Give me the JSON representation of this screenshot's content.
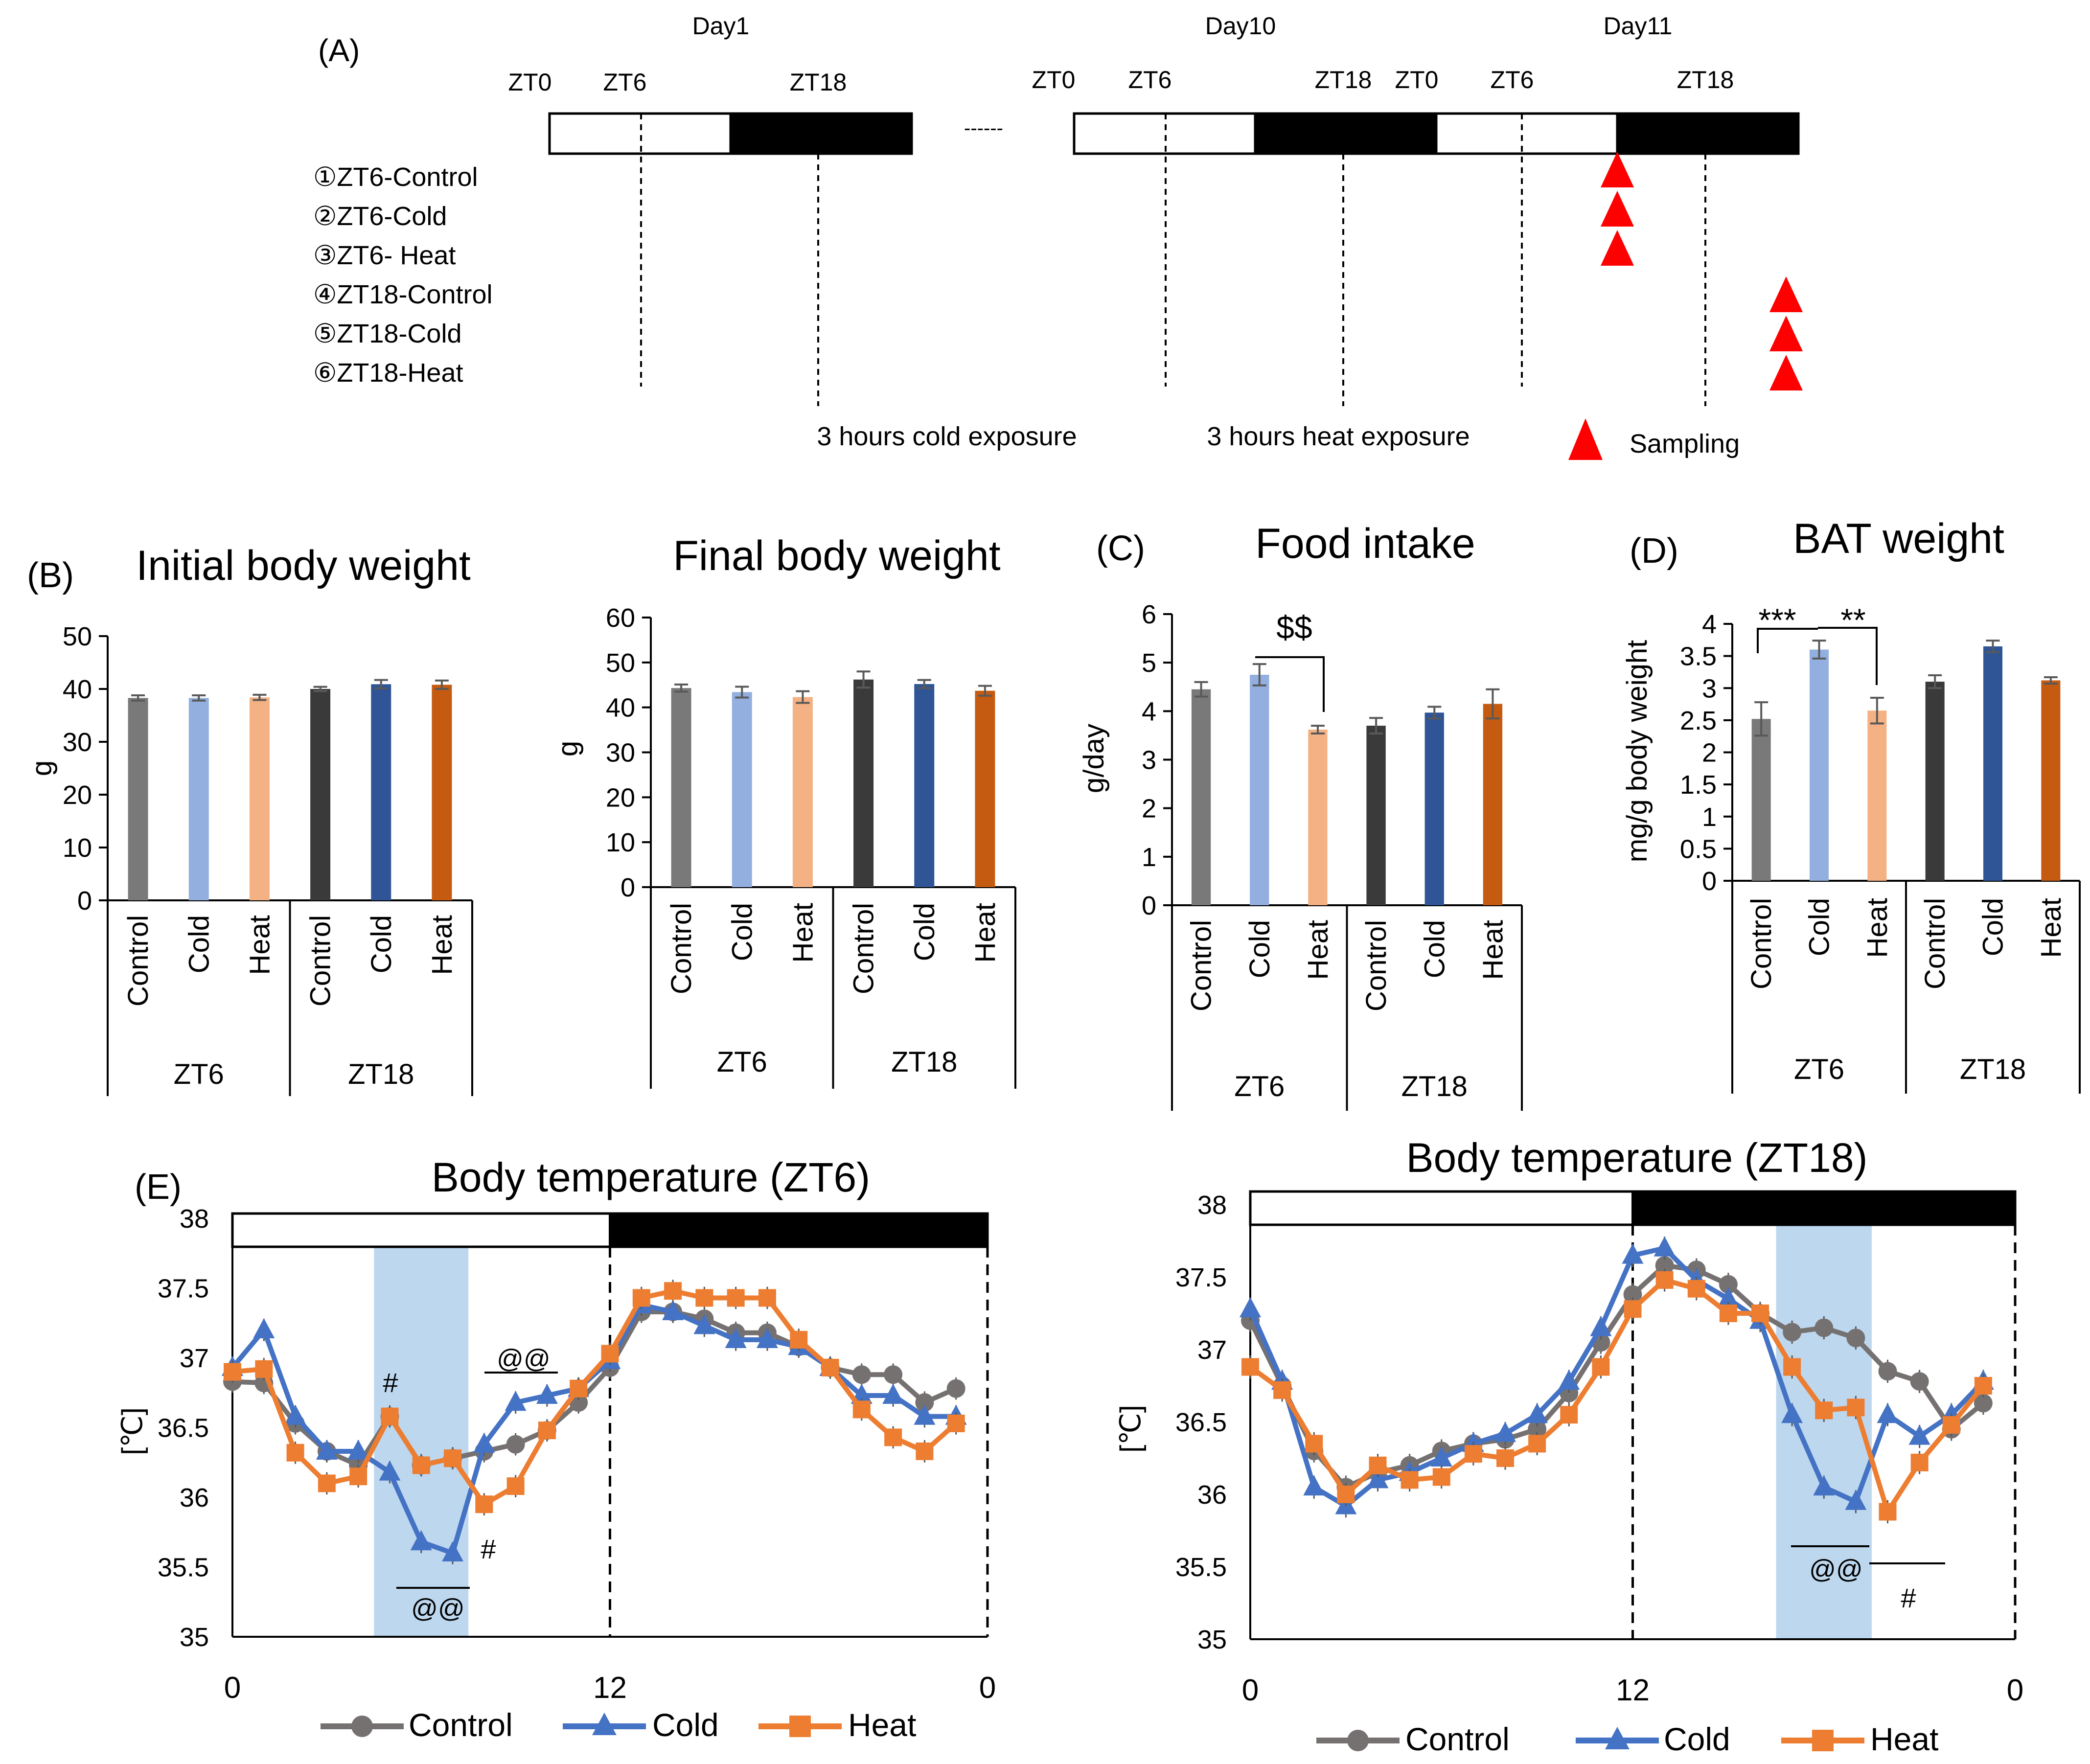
{
  "colors": {
    "control_zt6": "#7a7979",
    "cold_zt6": "#92afe0",
    "heat_zt6": "#f4b183",
    "control_zt18": "#3a3a3a",
    "cold_zt18": "#2f5597",
    "heat_zt18": "#c55a11",
    "line_control": "#767171",
    "line_cold": "#4472c4",
    "line_heat": "#ed7d31",
    "shade": "#bdd7ee",
    "triangle": "#ff0000"
  },
  "panel_a": {
    "label": "(A)",
    "days": [
      "Day1",
      "Day10",
      "Day11"
    ],
    "zt_labels": [
      "ZT0",
      "ZT6",
      "ZT18",
      "ZT0",
      "ZT6",
      "ZT18",
      "ZT0",
      "ZT6",
      "ZT18"
    ],
    "ellipsis": "------",
    "groups": [
      "①ZT6-Control",
      "②ZT6-Cold",
      "③ZT6- Heat",
      "④ZT18-Control",
      "⑤ZT18-Cold",
      "⑥ZT18-Heat"
    ],
    "cold_exposure": "3 hours cold exposure",
    "heat_exposure": "3 hours heat exposure",
    "sampling": "Sampling"
  },
  "bar_common": {
    "categories": [
      "Control",
      "Cold",
      "Heat",
      "Control",
      "Cold",
      "Heat"
    ],
    "group_labels": [
      "ZT6",
      "ZT18"
    ]
  },
  "panel_labels": {
    "b": "(B)",
    "c": "(C)",
    "d": "(D)",
    "e": "(E)"
  },
  "annotations": {
    "food_sig": "$$",
    "bat_sig1": "***",
    "bat_sig2": "**",
    "hash": "#",
    "atat": "@@"
  },
  "chart_data": [
    {
      "id": "initial_bw",
      "type": "bar",
      "title": "Initial body weight",
      "ylabel": "g",
      "ylim": [
        0,
        50
      ],
      "yticks": [
        "0",
        "10",
        "20",
        "30",
        "40",
        "50"
      ],
      "categories": [
        "Control",
        "Cold",
        "Heat",
        "Control",
        "Cold",
        "Heat"
      ],
      "values": [
        38.3,
        38.3,
        38.4,
        40.0,
        40.9,
        40.8
      ],
      "errors": [
        0.5,
        0.5,
        0.5,
        0.4,
        0.8,
        0.8
      ]
    },
    {
      "id": "final_bw",
      "type": "bar",
      "title": "Final body weight",
      "ylabel": "g",
      "ylim": [
        0,
        60
      ],
      "yticks": [
        "0",
        "10",
        "20",
        "30",
        "40",
        "50",
        "60"
      ],
      "categories": [
        "Control",
        "Cold",
        "Heat",
        "Control",
        "Cold",
        "Heat"
      ],
      "values": [
        44.3,
        43.4,
        42.3,
        46.2,
        45.2,
        43.7
      ],
      "errors": [
        0.8,
        1.2,
        1.3,
        1.8,
        0.9,
        1.1
      ]
    },
    {
      "id": "food_intake",
      "type": "bar",
      "title": "Food intake",
      "ylabel": "g/day",
      "ylim": [
        0,
        6
      ],
      "yticks": [
        "0",
        "1",
        "2",
        "3",
        "4",
        "5",
        "6"
      ],
      "categories": [
        "Control",
        "Cold",
        "Heat",
        "Control",
        "Cold",
        "Heat"
      ],
      "values": [
        4.45,
        4.75,
        3.62,
        3.7,
        3.97,
        4.15
      ],
      "errors": [
        0.15,
        0.22,
        0.08,
        0.16,
        0.12,
        0.3
      ]
    },
    {
      "id": "bat_weight",
      "type": "bar",
      "title": "BAT weight",
      "ylabel": "mg/g body weight",
      "ylim": [
        0,
        4
      ],
      "yticks": [
        "0",
        "0.5",
        "1",
        "1.5",
        "2",
        "2.5",
        "3",
        "3.5",
        "4"
      ],
      "categories": [
        "Control",
        "Cold",
        "Heat",
        "Control",
        "Cold",
        "Heat"
      ],
      "values": [
        2.52,
        3.6,
        2.65,
        3.1,
        3.65,
        3.12
      ],
      "errors": [
        0.26,
        0.14,
        0.2,
        0.1,
        0.09,
        0.05
      ]
    },
    {
      "id": "temp_zt6",
      "type": "line",
      "title": "Body temperature (ZT6)",
      "ylabel": "[℃]",
      "ylim": [
        35,
        38
      ],
      "yticks": [
        "35",
        "35.5",
        "36",
        "36.5",
        "37",
        "37.5",
        "38"
      ],
      "xtick_labels": [
        "0",
        "12",
        "0"
      ],
      "x": [
        0,
        1,
        2,
        3,
        4,
        5,
        6,
        7,
        8,
        9,
        10,
        11,
        12,
        13,
        14,
        15,
        16,
        17,
        18,
        19,
        20,
        21,
        22,
        23
      ],
      "shade_range": [
        4.5,
        7.5
      ],
      "series": [
        {
          "name": "Control",
          "values": [
            36.83,
            36.82,
            36.53,
            36.33,
            36.23,
            36.58,
            36.23,
            36.28,
            36.33,
            36.38,
            36.48,
            36.68,
            36.93,
            37.33,
            37.33,
            37.28,
            37.18,
            37.18,
            37.08,
            36.93,
            36.88,
            36.88,
            36.68,
            36.78
          ]
        },
        {
          "name": "Cold",
          "values": [
            36.93,
            37.2,
            36.58,
            36.33,
            36.33,
            36.18,
            35.68,
            35.6,
            36.38,
            36.68,
            36.73,
            36.78,
            36.98,
            37.38,
            37.33,
            37.23,
            37.13,
            37.13,
            37.08,
            36.93,
            36.73,
            36.73,
            36.58,
            36.58
          ]
        },
        {
          "name": "Heat",
          "values": [
            36.9,
            36.92,
            36.32,
            36.1,
            36.15,
            36.58,
            36.23,
            36.28,
            35.95,
            36.08,
            36.48,
            36.78,
            37.03,
            37.43,
            37.48,
            37.43,
            37.43,
            37.43,
            37.13,
            36.93,
            36.63,
            36.43,
            36.33,
            36.53
          ]
        }
      ]
    },
    {
      "id": "temp_zt18",
      "type": "line",
      "title": "Body temperature (ZT18)",
      "ylabel": "[℃]",
      "ylim": [
        35,
        38
      ],
      "yticks": [
        "35",
        "35.5",
        "36",
        "36.5",
        "37",
        "37.5",
        "38"
      ],
      "xtick_labels": [
        "0",
        "12",
        "0"
      ],
      "x": [
        0,
        1,
        2,
        3,
        4,
        5,
        6,
        7,
        8,
        9,
        10,
        11,
        12,
        13,
        14,
        15,
        16,
        17,
        18,
        19,
        20,
        21,
        22,
        23
      ],
      "shade_range": [
        16.5,
        19.5
      ],
      "series": [
        {
          "name": "Control",
          "values": [
            37.2,
            36.75,
            36.3,
            36.05,
            36.15,
            36.2,
            36.3,
            36.35,
            36.38,
            36.45,
            36.7,
            37.05,
            37.38,
            37.58,
            37.55,
            37.45,
            37.25,
            37.12,
            37.15,
            37.08,
            36.85,
            36.78,
            36.45,
            36.63
          ]
        },
        {
          "name": "Cold",
          "values": [
            37.28,
            36.78,
            36.05,
            35.92,
            36.1,
            36.15,
            36.25,
            36.35,
            36.42,
            36.55,
            36.78,
            37.15,
            37.65,
            37.7,
            37.48,
            37.35,
            37.2,
            36.55,
            36.05,
            35.95,
            36.55,
            36.4,
            36.55,
            36.78
          ]
        },
        {
          "name": "Heat",
          "values": [
            36.88,
            36.72,
            36.35,
            36.0,
            36.2,
            36.1,
            36.12,
            36.28,
            36.25,
            36.35,
            36.55,
            36.88,
            37.28,
            37.48,
            37.42,
            37.25,
            37.25,
            36.88,
            36.58,
            36.6,
            35.88,
            36.22,
            36.48,
            36.75
          ]
        }
      ]
    }
  ]
}
